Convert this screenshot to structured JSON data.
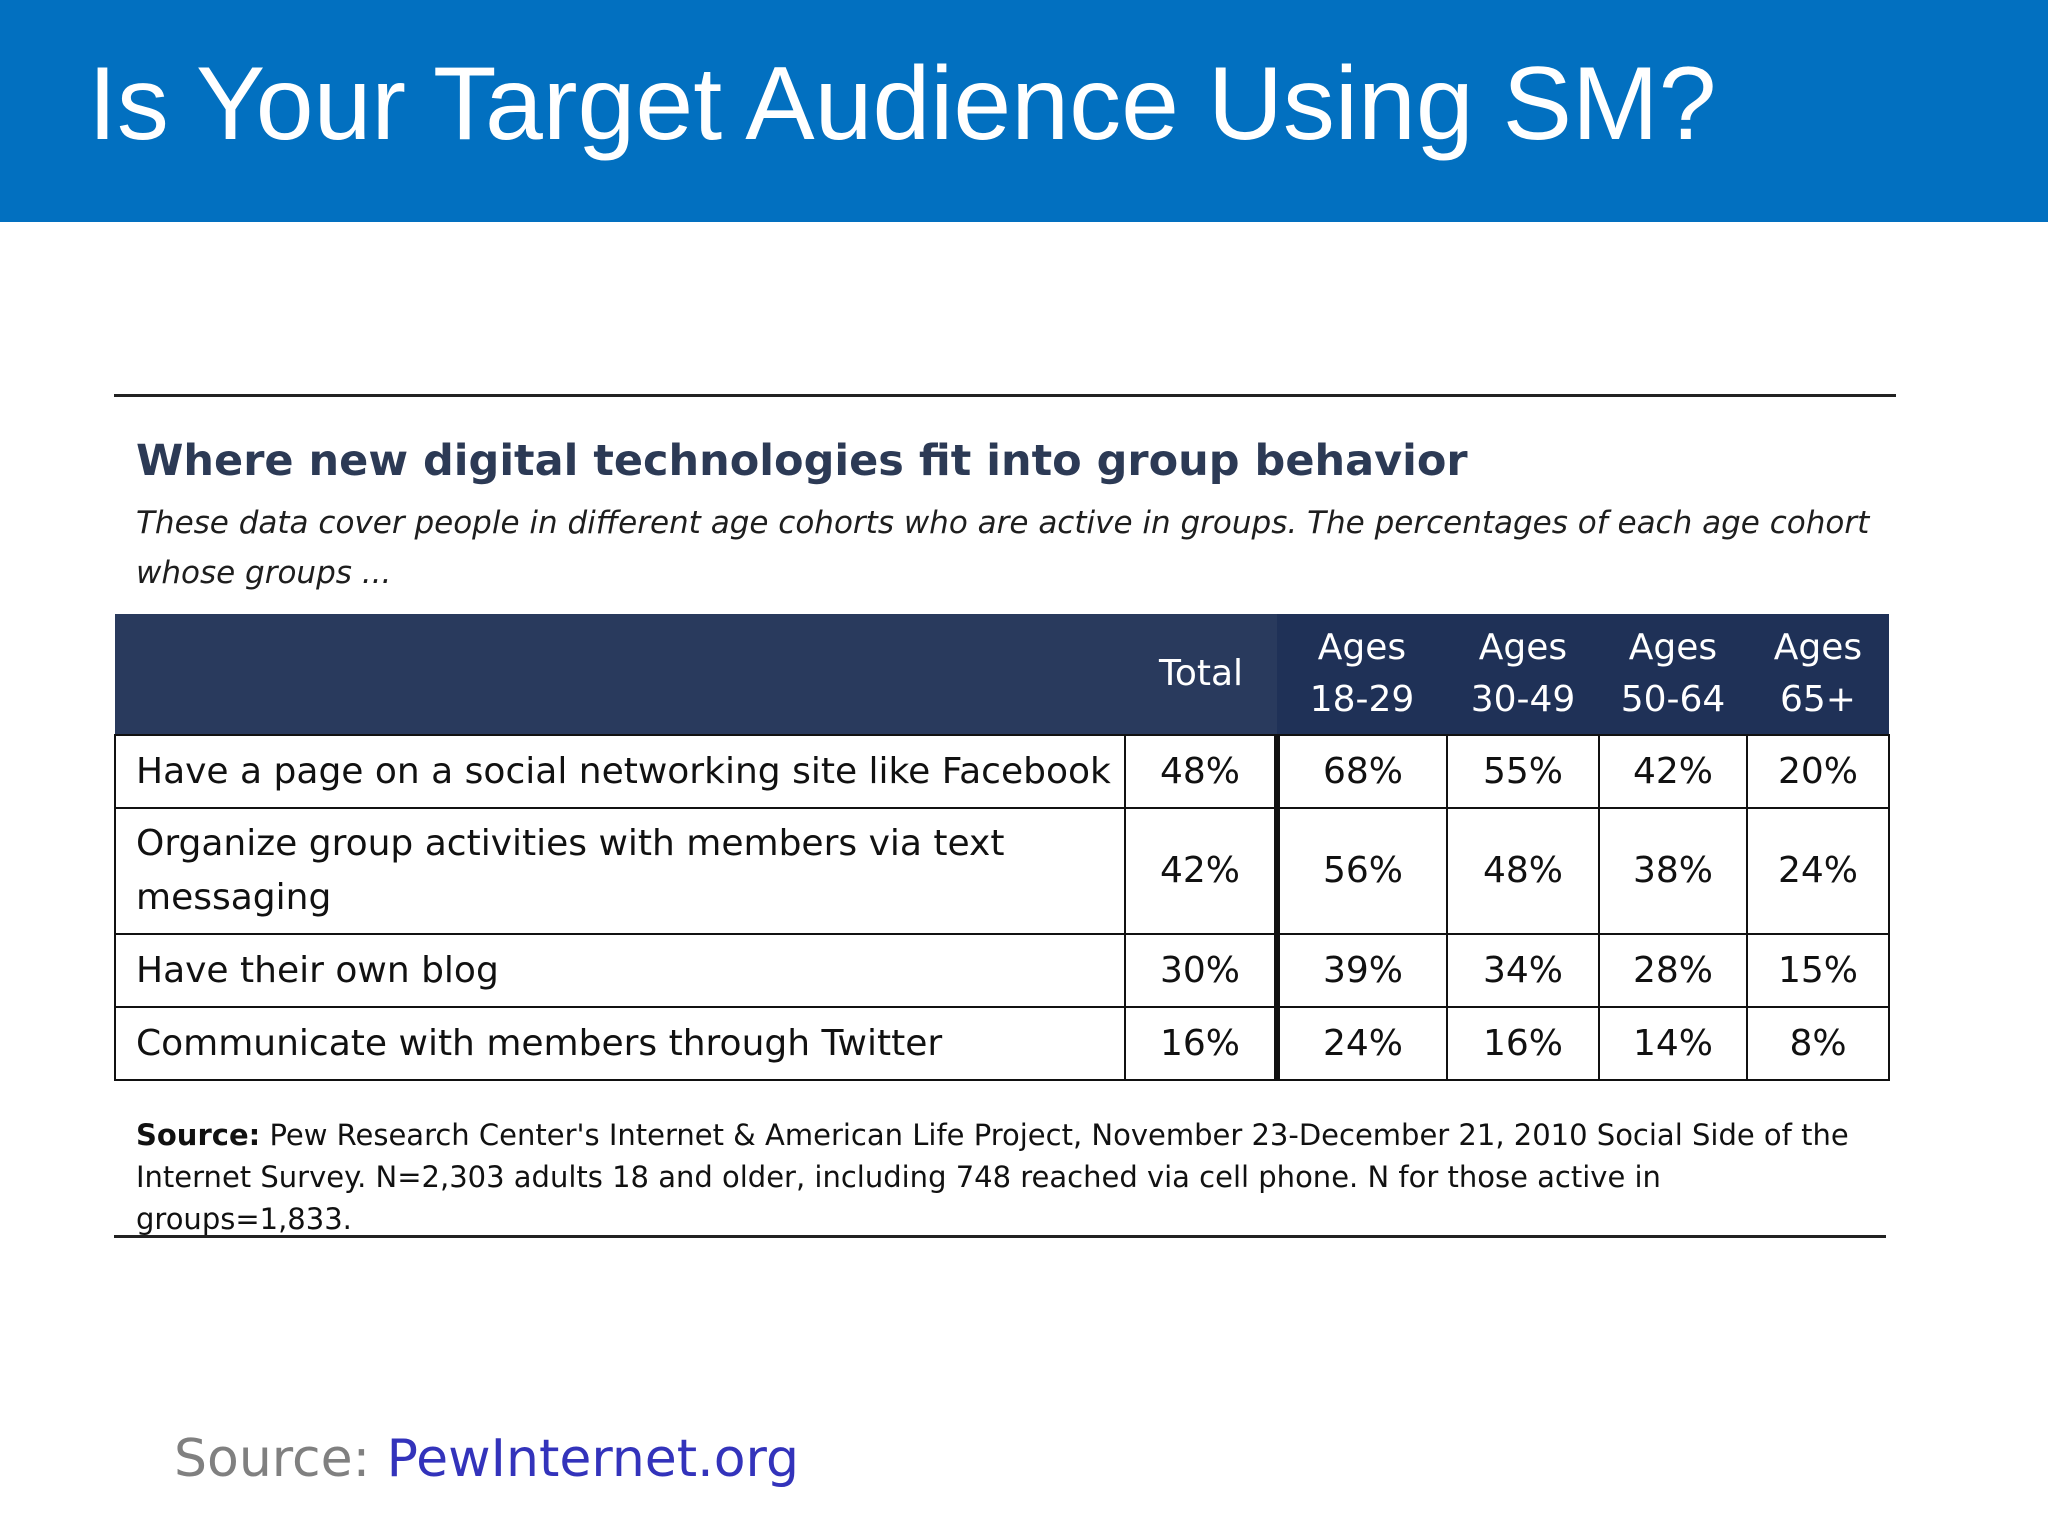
{
  "slide": {
    "title": "Is Your Target Audience Using SM?",
    "source_label": "Source:",
    "source_link": "PewInternet.org",
    "colors": {
      "title_band": "#0270c0",
      "table_header": "#293a5d",
      "figure_title": "#2c3a55",
      "source_label": "#808080",
      "source_link": "#3333bb"
    }
  },
  "chart_data": {
    "type": "table",
    "title": "Where new digital technologies fit into group behavior",
    "subtitle": "These data cover people in different age cohorts who are active in groups. The percentages of each age cohort whose groups ...",
    "columns": [
      {
        "line1": "Total",
        "line2": ""
      },
      {
        "line1": "Ages",
        "line2": "18-29"
      },
      {
        "line1": "Ages",
        "line2": "30-49"
      },
      {
        "line1": "Ages",
        "line2": "50-64"
      },
      {
        "line1": "Ages",
        "line2": "65+"
      }
    ],
    "rows": [
      {
        "label": "Have a page on a social networking site like Facebook",
        "values": [
          "48%",
          "68%",
          "55%",
          "42%",
          "20%"
        ]
      },
      {
        "label": "Organize group activities with members via text messaging",
        "values": [
          "42%",
          "56%",
          "48%",
          "38%",
          "24%"
        ]
      },
      {
        "label": "Have their own blog",
        "values": [
          "30%",
          "39%",
          "34%",
          "28%",
          "15%"
        ]
      },
      {
        "label": "Communicate with members through Twitter",
        "values": [
          "16%",
          "24%",
          "16%",
          "14%",
          "8%"
        ]
      }
    ],
    "source_label": "Source:",
    "source_text": "Pew Research Center's Internet & American Life Project, November 23-December 21, 2010 Social Side of the Internet Survey. N=2,303 adults 18 and older, including 748 reached via cell phone.  N for those active in groups=1,833."
  }
}
